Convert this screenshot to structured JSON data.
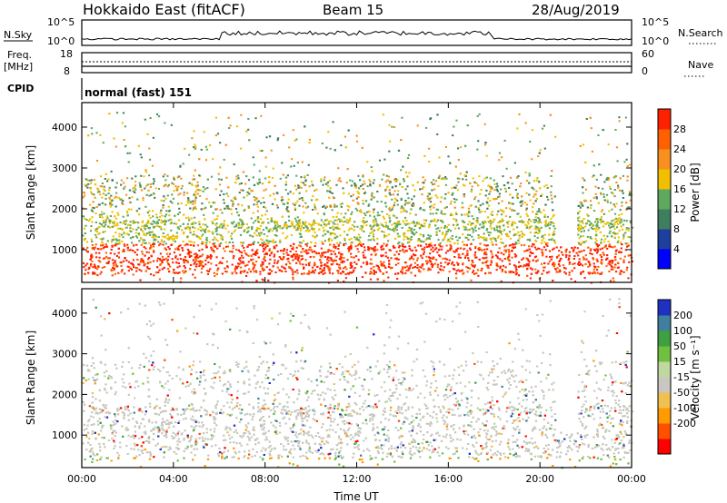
{
  "header": {
    "station": "Hokkaido East (fitACF)",
    "beam": "Beam 15",
    "date": "28/Aug/2019"
  },
  "top_panels": {
    "nsky_label": "N.Sky",
    "nsky_ticks": [
      "10^5",
      "10^0"
    ],
    "nsearch_label": "N.Search",
    "nsearch_ticks": [
      "10^5",
      "10^0"
    ],
    "freq_label": "Freq.",
    "freq_unit": "[MHz]",
    "freq_ticks": [
      "18",
      "8"
    ],
    "nave_label": "Nave",
    "nave_ticks": [
      "60",
      "0"
    ],
    "cpid_label": "CPID",
    "cpid_value": "normal (fast) 151"
  },
  "chart_data": [
    {
      "type": "heatmap",
      "title": "",
      "xlabel": "",
      "ylabel": "Slant Range [km]",
      "x_ticks": [
        "00:00",
        "04:00",
        "08:00",
        "12:00",
        "16:00",
        "20:00",
        "00:00"
      ],
      "y_ticks": [
        "4000",
        "3000",
        "2000",
        "1000"
      ],
      "ylim": [
        200,
        4600
      ],
      "colorbar_label": "Power [dB]",
      "colorbar_ticks": [
        "28",
        "24",
        "20",
        "16",
        "12",
        "8",
        "4"
      ],
      "colors": [
        "#0000ff",
        "#1f3f9f",
        "#3f7f5f",
        "#5fa85f",
        "#f0c000",
        "#f89020",
        "#ff6000",
        "#ff2000"
      ],
      "x_label_text": ""
    },
    {
      "type": "heatmap",
      "title": "",
      "xlabel": "Time UT",
      "ylabel": "Slant Range [km]",
      "x_ticks": [
        "00:00",
        "04:00",
        "08:00",
        "12:00",
        "16:00",
        "20:00",
        "00:00"
      ],
      "y_ticks": [
        "4000",
        "3000",
        "2000",
        "1000"
      ],
      "ylim": [
        200,
        4600
      ],
      "colorbar_label": "Velocity [m s⁻¹]",
      "colorbar_ticks": [
        "200",
        "100",
        "50",
        "15",
        "-15",
        "-50",
        "-100",
        "-200"
      ],
      "colors": [
        "#ff0000",
        "#ff5000",
        "#ff9a00",
        "#f0c050",
        "#c8c8c0",
        "#c0d8a0",
        "#70c040",
        "#3fa03f",
        "#3f7f9f",
        "#2030c0"
      ]
    }
  ]
}
